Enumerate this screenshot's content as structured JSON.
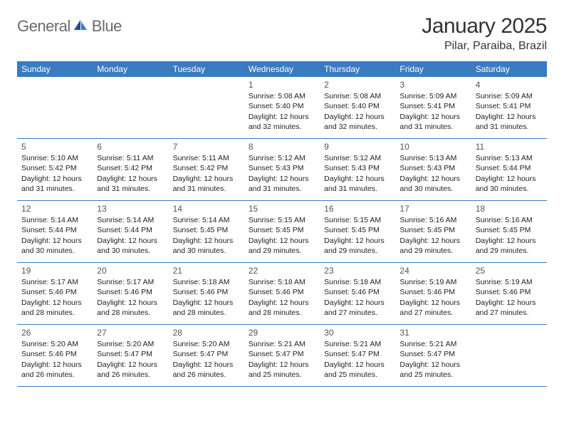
{
  "logo": {
    "word1": "General",
    "word2": "Blue"
  },
  "title": "January 2025",
  "location": "Pilar, Paraiba, Brazil",
  "colors": {
    "header_bg": "#3b7bbf",
    "header_text": "#ffffff",
    "border": "#3b7bbf",
    "text": "#222222",
    "daynum": "#555555",
    "logo_gray": "#6b6b6b",
    "logo_blue": "#3b7bbf",
    "page_bg": "#ffffff"
  },
  "weekdays": [
    "Sunday",
    "Monday",
    "Tuesday",
    "Wednesday",
    "Thursday",
    "Friday",
    "Saturday"
  ],
  "weeks": [
    [
      null,
      null,
      null,
      {
        "n": "1",
        "sunrise": "Sunrise: 5:08 AM",
        "sunset": "Sunset: 5:40 PM",
        "daylight": "Daylight: 12 hours and 32 minutes."
      },
      {
        "n": "2",
        "sunrise": "Sunrise: 5:08 AM",
        "sunset": "Sunset: 5:40 PM",
        "daylight": "Daylight: 12 hours and 32 minutes."
      },
      {
        "n": "3",
        "sunrise": "Sunrise: 5:09 AM",
        "sunset": "Sunset: 5:41 PM",
        "daylight": "Daylight: 12 hours and 31 minutes."
      },
      {
        "n": "4",
        "sunrise": "Sunrise: 5:09 AM",
        "sunset": "Sunset: 5:41 PM",
        "daylight": "Daylight: 12 hours and 31 minutes."
      }
    ],
    [
      {
        "n": "5",
        "sunrise": "Sunrise: 5:10 AM",
        "sunset": "Sunset: 5:42 PM",
        "daylight": "Daylight: 12 hours and 31 minutes."
      },
      {
        "n": "6",
        "sunrise": "Sunrise: 5:11 AM",
        "sunset": "Sunset: 5:42 PM",
        "daylight": "Daylight: 12 hours and 31 minutes."
      },
      {
        "n": "7",
        "sunrise": "Sunrise: 5:11 AM",
        "sunset": "Sunset: 5:42 PM",
        "daylight": "Daylight: 12 hours and 31 minutes."
      },
      {
        "n": "8",
        "sunrise": "Sunrise: 5:12 AM",
        "sunset": "Sunset: 5:43 PM",
        "daylight": "Daylight: 12 hours and 31 minutes."
      },
      {
        "n": "9",
        "sunrise": "Sunrise: 5:12 AM",
        "sunset": "Sunset: 5:43 PM",
        "daylight": "Daylight: 12 hours and 31 minutes."
      },
      {
        "n": "10",
        "sunrise": "Sunrise: 5:13 AM",
        "sunset": "Sunset: 5:43 PM",
        "daylight": "Daylight: 12 hours and 30 minutes."
      },
      {
        "n": "11",
        "sunrise": "Sunrise: 5:13 AM",
        "sunset": "Sunset: 5:44 PM",
        "daylight": "Daylight: 12 hours and 30 minutes."
      }
    ],
    [
      {
        "n": "12",
        "sunrise": "Sunrise: 5:14 AM",
        "sunset": "Sunset: 5:44 PM",
        "daylight": "Daylight: 12 hours and 30 minutes."
      },
      {
        "n": "13",
        "sunrise": "Sunrise: 5:14 AM",
        "sunset": "Sunset: 5:44 PM",
        "daylight": "Daylight: 12 hours and 30 minutes."
      },
      {
        "n": "14",
        "sunrise": "Sunrise: 5:14 AM",
        "sunset": "Sunset: 5:45 PM",
        "daylight": "Daylight: 12 hours and 30 minutes."
      },
      {
        "n": "15",
        "sunrise": "Sunrise: 5:15 AM",
        "sunset": "Sunset: 5:45 PM",
        "daylight": "Daylight: 12 hours and 29 minutes."
      },
      {
        "n": "16",
        "sunrise": "Sunrise: 5:15 AM",
        "sunset": "Sunset: 5:45 PM",
        "daylight": "Daylight: 12 hours and 29 minutes."
      },
      {
        "n": "17",
        "sunrise": "Sunrise: 5:16 AM",
        "sunset": "Sunset: 5:45 PM",
        "daylight": "Daylight: 12 hours and 29 minutes."
      },
      {
        "n": "18",
        "sunrise": "Sunrise: 5:16 AM",
        "sunset": "Sunset: 5:45 PM",
        "daylight": "Daylight: 12 hours and 29 minutes."
      }
    ],
    [
      {
        "n": "19",
        "sunrise": "Sunrise: 5:17 AM",
        "sunset": "Sunset: 5:46 PM",
        "daylight": "Daylight: 12 hours and 28 minutes."
      },
      {
        "n": "20",
        "sunrise": "Sunrise: 5:17 AM",
        "sunset": "Sunset: 5:46 PM",
        "daylight": "Daylight: 12 hours and 28 minutes."
      },
      {
        "n": "21",
        "sunrise": "Sunrise: 5:18 AM",
        "sunset": "Sunset: 5:46 PM",
        "daylight": "Daylight: 12 hours and 28 minutes."
      },
      {
        "n": "22",
        "sunrise": "Sunrise: 5:18 AM",
        "sunset": "Sunset: 5:46 PM",
        "daylight": "Daylight: 12 hours and 28 minutes."
      },
      {
        "n": "23",
        "sunrise": "Sunrise: 5:18 AM",
        "sunset": "Sunset: 5:46 PM",
        "daylight": "Daylight: 12 hours and 27 minutes."
      },
      {
        "n": "24",
        "sunrise": "Sunrise: 5:19 AM",
        "sunset": "Sunset: 5:46 PM",
        "daylight": "Daylight: 12 hours and 27 minutes."
      },
      {
        "n": "25",
        "sunrise": "Sunrise: 5:19 AM",
        "sunset": "Sunset: 5:46 PM",
        "daylight": "Daylight: 12 hours and 27 minutes."
      }
    ],
    [
      {
        "n": "26",
        "sunrise": "Sunrise: 5:20 AM",
        "sunset": "Sunset: 5:46 PM",
        "daylight": "Daylight: 12 hours and 26 minutes."
      },
      {
        "n": "27",
        "sunrise": "Sunrise: 5:20 AM",
        "sunset": "Sunset: 5:47 PM",
        "daylight": "Daylight: 12 hours and 26 minutes."
      },
      {
        "n": "28",
        "sunrise": "Sunrise: 5:20 AM",
        "sunset": "Sunset: 5:47 PM",
        "daylight": "Daylight: 12 hours and 26 minutes."
      },
      {
        "n": "29",
        "sunrise": "Sunrise: 5:21 AM",
        "sunset": "Sunset: 5:47 PM",
        "daylight": "Daylight: 12 hours and 25 minutes."
      },
      {
        "n": "30",
        "sunrise": "Sunrise: 5:21 AM",
        "sunset": "Sunset: 5:47 PM",
        "daylight": "Daylight: 12 hours and 25 minutes."
      },
      {
        "n": "31",
        "sunrise": "Sunrise: 5:21 AM",
        "sunset": "Sunset: 5:47 PM",
        "daylight": "Daylight: 12 hours and 25 minutes."
      },
      null
    ]
  ]
}
